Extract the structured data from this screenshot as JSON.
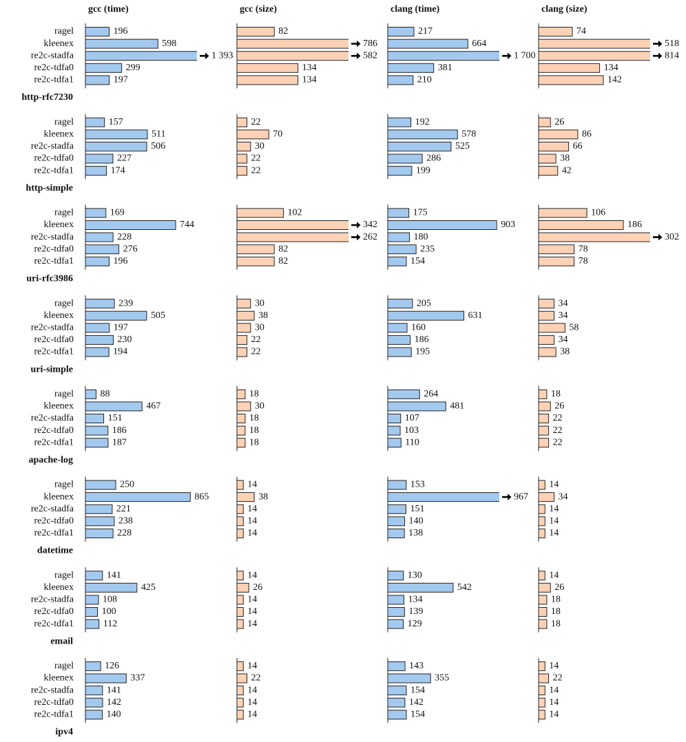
{
  "chart_data": {
    "type": "bar",
    "categories": [
      "ragel",
      "kleenex",
      "re2c-stadfa",
      "re2c-tdfa0",
      "re2c-tdfa1"
    ],
    "columns": [
      {
        "name": "gcc (time)",
        "color": "#a4c9ef",
        "xlim": [
          0,
          920
        ]
      },
      {
        "name": "gcc (size)",
        "color": "#fdd1b5",
        "xlim": [
          0,
          245
        ]
      },
      {
        "name": "clang (time)",
        "color": "#a4c9ef",
        "xlim": [
          0,
          925
        ]
      },
      {
        "name": "clang (size)",
        "color": "#fdd1b5",
        "xlim": [
          0,
          245
        ]
      }
    ],
    "panels": [
      {
        "title": "http-rfc7230",
        "series": [
          {
            "values": [
              196,
              598,
              1393,
              299,
              197
            ],
            "value_labels": [
              "196",
              "598",
              "1 393",
              "299",
              "197"
            ]
          },
          {
            "values": [
              82,
              786,
              582,
              134,
              134
            ]
          },
          {
            "values": [
              217,
              664,
              1700,
              381,
              210
            ],
            "value_labels": [
              "217",
              "664",
              "1 700",
              "381",
              "210"
            ]
          },
          {
            "values": [
              74,
              518,
              814,
              134,
              142
            ]
          }
        ]
      },
      {
        "title": "http-simple",
        "series": [
          {
            "values": [
              157,
              511,
              506,
              227,
              174
            ]
          },
          {
            "values": [
              22,
              70,
              30,
              22,
              22
            ]
          },
          {
            "values": [
              192,
              578,
              525,
              286,
              199
            ]
          },
          {
            "values": [
              26,
              86,
              66,
              38,
              42
            ]
          }
        ]
      },
      {
        "title": "uri-rfc3986",
        "series": [
          {
            "values": [
              169,
              744,
              228,
              276,
              196
            ]
          },
          {
            "values": [
              102,
              342,
              262,
              82,
              82
            ]
          },
          {
            "values": [
              175,
              903,
              180,
              235,
              154
            ]
          },
          {
            "values": [
              106,
              186,
              302,
              78,
              78
            ]
          }
        ]
      },
      {
        "title": "uri-simple",
        "series": [
          {
            "values": [
              239,
              505,
              197,
              230,
              194
            ]
          },
          {
            "values": [
              30,
              38,
              30,
              22,
              22
            ]
          },
          {
            "values": [
              205,
              631,
              160,
              186,
              195
            ]
          },
          {
            "values": [
              34,
              34,
              58,
              34,
              38
            ]
          }
        ]
      },
      {
        "title": "apache-log",
        "series": [
          {
            "values": [
              88,
              467,
              151,
              186,
              187
            ]
          },
          {
            "values": [
              18,
              30,
              18,
              18,
              18
            ]
          },
          {
            "values": [
              264,
              481,
              107,
              103,
              110
            ]
          },
          {
            "values": [
              18,
              26,
              22,
              22,
              22
            ]
          }
        ]
      },
      {
        "title": "datetime",
        "series": [
          {
            "values": [
              250,
              865,
              221,
              238,
              228
            ]
          },
          {
            "values": [
              14,
              38,
              14,
              14,
              14
            ]
          },
          {
            "values": [
              153,
              967,
              151,
              140,
              138
            ]
          },
          {
            "values": [
              14,
              34,
              14,
              14,
              14
            ]
          }
        ]
      },
      {
        "title": "email",
        "series": [
          {
            "values": [
              141,
              425,
              108,
              100,
              112
            ]
          },
          {
            "values": [
              14,
              26,
              14,
              14,
              14
            ]
          },
          {
            "values": [
              130,
              542,
              134,
              139,
              129
            ]
          },
          {
            "values": [
              14,
              26,
              18,
              18,
              18
            ]
          }
        ]
      },
      {
        "title": "ipv4",
        "series": [
          {
            "values": [
              126,
              337,
              141,
              142,
              140
            ]
          },
          {
            "values": [
              14,
              22,
              14,
              14,
              14
            ]
          },
          {
            "values": [
              143,
              355,
              154,
              142,
              154
            ]
          },
          {
            "values": [
              14,
              22,
              14,
              14,
              14
            ]
          }
        ]
      }
    ]
  }
}
